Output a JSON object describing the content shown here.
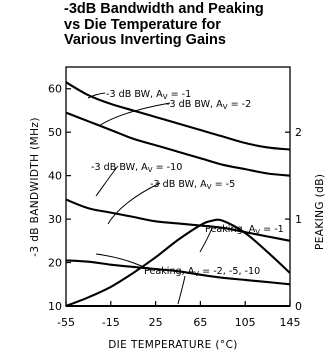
{
  "chart_data": {
    "type": "line",
    "title_lines": [
      "-3dB Bandwidth and Peaking",
      "vs Die Temperature for",
      "Various Inverting Gains"
    ],
    "xlabel": "DIE TEMPERATURE (°C)",
    "ylabel": "-3 dB BANDWIDTH (MHz)",
    "y2label": "PEAKING (dB)",
    "xlim": [
      -55,
      145
    ],
    "ylim": [
      10,
      65
    ],
    "y2lim": [
      0,
      2.75
    ],
    "x_ticks": [
      -55,
      -15,
      25,
      65,
      105,
      145
    ],
    "y_ticks": [
      10,
      20,
      30,
      40,
      50,
      60
    ],
    "y2_ticks": [
      0,
      1,
      2
    ],
    "grid": false,
    "series": [
      {
        "name": "-3 dB BW, A_V = -1",
        "axis": "left",
        "x": [
          -55,
          -35,
          -15,
          5,
          25,
          45,
          65,
          85,
          105,
          125,
          145
        ],
        "y": [
          61.5,
          58.5,
          56.5,
          55,
          53.5,
          52,
          50.5,
          49,
          47.5,
          46.5,
          46
        ]
      },
      {
        "name": "-3 dB BW, A_V = -2",
        "axis": "left",
        "x": [
          -55,
          -35,
          -15,
          5,
          25,
          45,
          65,
          85,
          105,
          125,
          145
        ],
        "y": [
          54.5,
          52.5,
          50.5,
          48.5,
          47,
          45.5,
          44,
          42.5,
          41.5,
          40.5,
          40
        ]
      },
      {
        "name": "-3 dB BW, A_V = -10",
        "axis": "left",
        "x": [
          -55,
          -35,
          -15,
          5,
          25,
          45,
          65,
          85,
          105,
          125,
          145
        ],
        "y": [
          34.5,
          32.5,
          31.5,
          30.5,
          29.5,
          29,
          28.5,
          28,
          27,
          26,
          25
        ]
      },
      {
        "name": "-3 dB BW, A_V = -5",
        "axis": "left",
        "x": [
          -55,
          -35,
          -15,
          5,
          25,
          45,
          65,
          85,
          105,
          125,
          145
        ],
        "y": [
          20.5,
          20.2,
          19.5,
          19,
          18.5,
          18,
          17.2,
          16.5,
          16,
          15.5,
          15
        ]
      },
      {
        "name": "Peaking, A_V = -1",
        "axis": "right",
        "x": [
          -55,
          -35,
          -15,
          5,
          25,
          45,
          65,
          75,
          85,
          105,
          125,
          145
        ],
        "y": [
          0,
          0.1,
          0.22,
          0.38,
          0.56,
          0.76,
          0.93,
          0.98,
          0.98,
          0.84,
          0.62,
          0.38
        ]
      },
      {
        "name": "Peaking, A_V = -2, -5, -10",
        "axis": "right",
        "x": [
          -55,
          145
        ],
        "y": [
          0,
          0
        ]
      }
    ],
    "annotations": [
      {
        "prefix": "-3 dB BW, A",
        "sub": "V",
        "suffix": " = -1"
      },
      {
        "prefix": "-3 dB BW, A",
        "sub": "V",
        "suffix": " = -2"
      },
      {
        "prefix": "-3 dB BW, A",
        "sub": "V",
        "suffix": " = -10"
      },
      {
        "prefix": "-3 dB BW, A",
        "sub": "V",
        "suffix": " = -5"
      },
      {
        "prefix": "Peaking, A",
        "sub": "V",
        "suffix": " = -1"
      },
      {
        "prefix": "Peaking, A",
        "sub": "V",
        "suffix": " = -2, -5, -10"
      }
    ]
  }
}
